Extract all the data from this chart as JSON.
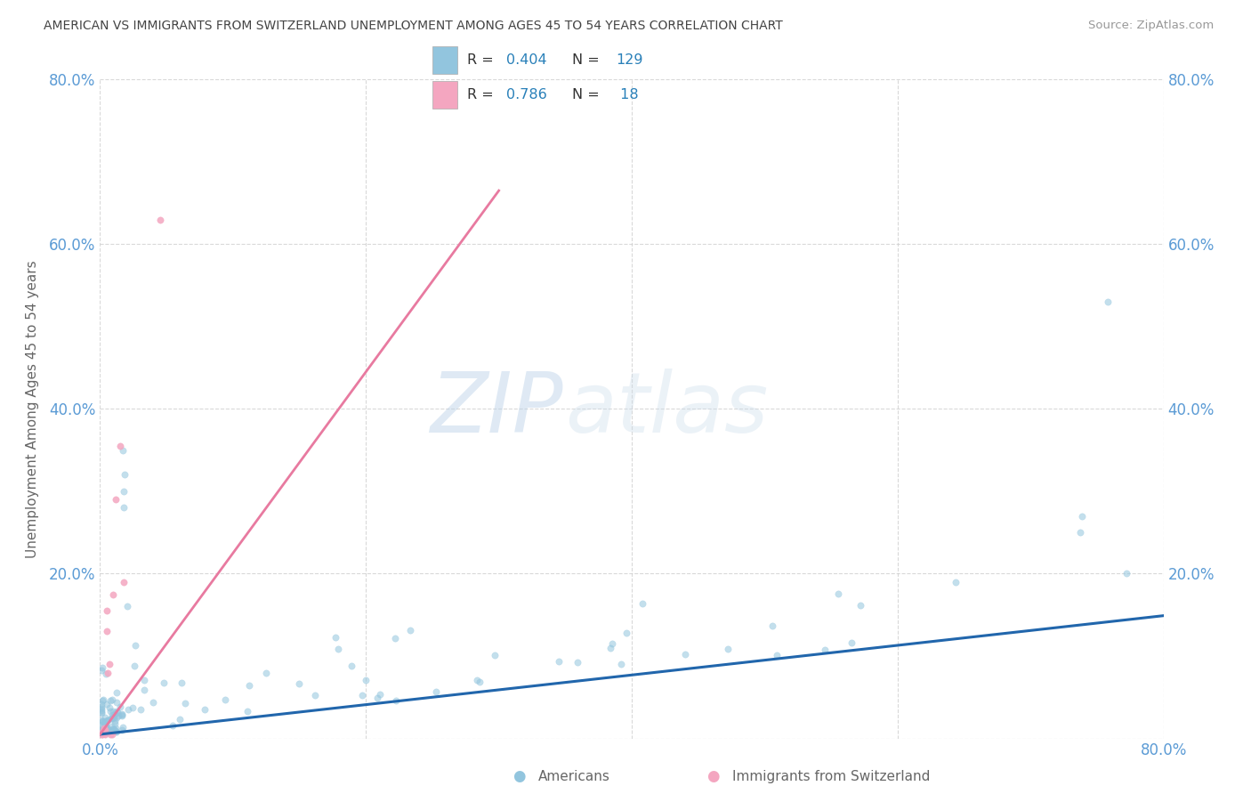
{
  "title": "AMERICAN VS IMMIGRANTS FROM SWITZERLAND UNEMPLOYMENT AMONG AGES 45 TO 54 YEARS CORRELATION CHART",
  "source": "Source: ZipAtlas.com",
  "ylabel": "Unemployment Among Ages 45 to 54 years",
  "xlim": [
    0.0,
    0.8
  ],
  "ylim": [
    0.0,
    0.8
  ],
  "xtick_vals": [
    0.0,
    0.2,
    0.4,
    0.6,
    0.8
  ],
  "ytick_vals": [
    0.0,
    0.2,
    0.4,
    0.6,
    0.8
  ],
  "xticklabels": [
    "0.0%",
    "",
    "",
    "",
    "80.0%"
  ],
  "yticklabels": [
    "",
    "20.0%",
    "40.0%",
    "60.0%",
    "80.0%"
  ],
  "background_color": "#ffffff",
  "watermark_zip": "ZIP",
  "watermark_atlas": "atlas",
  "blue_scatter_color": "#92c5de",
  "pink_scatter_color": "#f4a6c0",
  "blue_line_color": "#2166ac",
  "pink_line_color": "#e87aa0",
  "dot_size": 28,
  "dot_alpha": 0.55,
  "grid_color": "#d0d0d0",
  "title_color": "#444444",
  "label_color": "#666666",
  "tick_color": "#5b9bd5",
  "legend_R_val_color": "#2980b9",
  "legend_N_val_color": "#2980b9",
  "legend_label_color": "#333333",
  "legend_R_blue": "0.404",
  "legend_N_blue": "129",
  "legend_R_pink": "0.786",
  "legend_N_pink": " 18",
  "blue_slope": 0.18,
  "blue_intercept": 0.005,
  "pink_slope": 2.2,
  "pink_intercept": 0.005
}
